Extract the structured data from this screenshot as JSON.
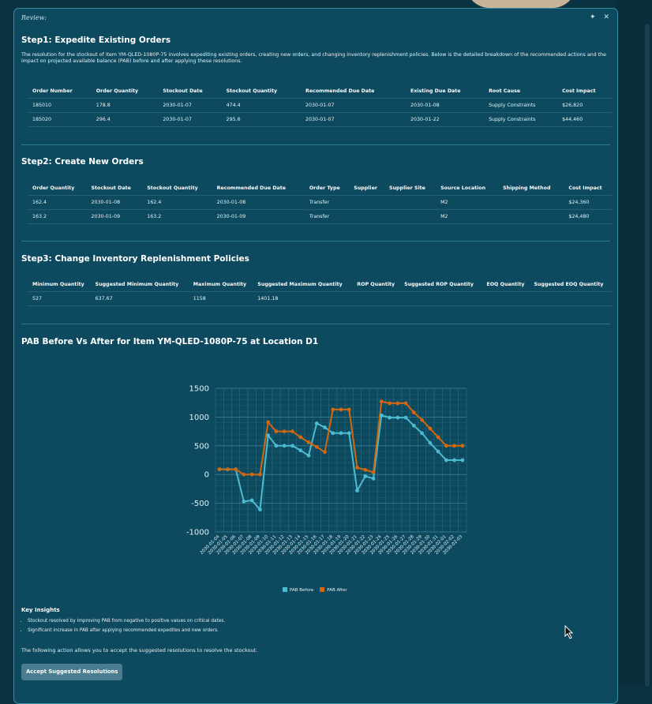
{
  "window": {
    "title": "Review:",
    "pin_icon": "pin-icon",
    "close_icon": "close-icon"
  },
  "step1": {
    "heading": "Step1: Expedite Existing Orders",
    "description": "The resolution for the stockout of item YM-QLED-1080P-75 involves expediting existing orders, creating new orders, and changing inventory replenishment policies. Below is the detailed breakdown of the recommended actions and the impact on projected available balance (PAB) before and after applying these resolutions.",
    "headers": [
      "Order Number",
      "Order Quantity",
      "Stockout Date",
      "Stockout Quantity",
      "Recommended Due Date",
      "Existing Due Date",
      "Root Cause",
      "Cost Impact"
    ],
    "rows": [
      [
        "185010",
        "178.8",
        "2030-01-07",
        "474.4",
        "2030-01-07",
        "2030-01-08",
        "Supply Constraints",
        "$26,820"
      ],
      [
        "185020",
        "296.4",
        "2030-01-07",
        "295.6",
        "2030-01-07",
        "2030-01-22",
        "Supply Constraints",
        "$44,460"
      ]
    ]
  },
  "step2": {
    "heading": "Step2: Create New Orders",
    "headers": [
      "Order Quantity",
      "Stockout Date",
      "Stockout Quantity",
      "Recommended Due Date",
      "Order Type",
      "Supplier",
      "Supplier Site",
      "Source Location",
      "Shipping Method",
      "Cost Impact"
    ],
    "rows": [
      [
        "162.4",
        "2030-01-08",
        "162.4",
        "2030-01-08",
        "Transfer",
        "",
        "",
        "M2",
        "",
        "$24,360"
      ],
      [
        "163.2",
        "2030-01-09",
        "163.2",
        "2030-01-09",
        "Transfer",
        "",
        "",
        "M2",
        "",
        "$24,480"
      ]
    ]
  },
  "step3": {
    "heading": "Step3: Change Inventory Replenishment Policies",
    "headers": [
      "Minimum Quantity",
      "Suggested Minimum Quantity",
      "Maximum Quantity",
      "Suggested Maximum Quantity",
      "ROP Quantity",
      "Suggested ROP Quantity",
      "EOQ Quantity",
      "Suggested EOQ Quantity"
    ],
    "rows": [
      [
        "527",
        "637.67",
        "1158",
        "1401.18",
        "",
        "",
        "",
        ""
      ]
    ]
  },
  "chart_section": {
    "heading": "PAB Before Vs After for Item YM-QLED-1080P-75 at Location D1"
  },
  "chart_data": {
    "type": "line",
    "title": "PAB Before Vs After for Item YM-QLED-1080P-75 at Location D1",
    "xlabel": "",
    "ylabel": "",
    "ylim": [
      -1000,
      1500
    ],
    "yticks": [
      1500,
      1000,
      500,
      0,
      -500,
      -1000
    ],
    "grid": true,
    "legend_position": "bottom",
    "x": [
      "2030-01-04",
      "2030-01-05",
      "2030-01-06",
      "2030-01-07",
      "2030-01-08",
      "2030-01-09",
      "2030-01-10",
      "2030-01-11",
      "2030-01-12",
      "2030-01-13",
      "2030-01-14",
      "2030-01-15",
      "2030-01-16",
      "2030-01-17",
      "2030-01-18",
      "2030-01-19",
      "2030-01-20",
      "2030-01-21",
      "2030-01-22",
      "2030-01-23",
      "2030-01-24",
      "2030-01-25",
      "2030-01-26",
      "2030-01-27",
      "2030-01-28",
      "2030-01-29",
      "2030-01-30",
      "2030-01-31",
      "2030-02-01",
      "2030-02-02",
      "2030-02-03"
    ],
    "series": [
      {
        "name": "PAB Before",
        "color": "#4bbcd0",
        "values": [
          90,
          90,
          90,
          -470,
          -450,
          -610,
          680,
          500,
          500,
          500,
          420,
          330,
          890,
          820,
          720,
          720,
          720,
          -280,
          -30,
          -70,
          1030,
          990,
          990,
          990,
          850,
          720,
          550,
          400,
          250,
          250,
          250
        ]
      },
      {
        "name": "PAB After",
        "color": "#d2670f",
        "values": [
          90,
          90,
          90,
          0,
          0,
          0,
          910,
          750,
          750,
          750,
          650,
          560,
          480,
          390,
          1130,
          1130,
          1130,
          120,
          80,
          40,
          1270,
          1240,
          1240,
          1240,
          1080,
          950,
          800,
          650,
          500,
          500,
          500
        ]
      }
    ]
  },
  "insights": {
    "title": "Key Insights",
    "items": [
      "Stockout resolved by improving PAB from negative to positive values on critical dates.",
      "Significant increase in PAB after applying recommended expedites and new orders."
    ]
  },
  "action": {
    "text": "The following action allows you to accept the suggested resolutions to resolve the stockout.",
    "button_label": "Accept Suggested Resolutions"
  }
}
